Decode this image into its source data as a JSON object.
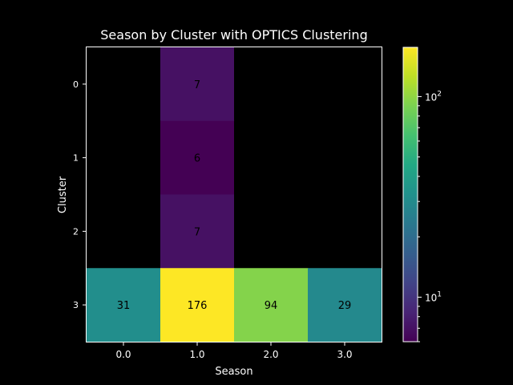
{
  "chart_data": {
    "type": "heatmap",
    "title": "Season by Cluster with OPTICS Clustering",
    "xlabel": "Season",
    "ylabel": "Cluster",
    "x_categories": [
      "0.0",
      "1.0",
      "2.0",
      "3.0"
    ],
    "y_categories": [
      "0",
      "1",
      "2",
      "3"
    ],
    "values": [
      [
        null,
        7,
        null,
        null
      ],
      [
        null,
        6,
        null,
        null
      ],
      [
        null,
        7,
        null,
        null
      ],
      [
        31,
        176,
        94,
        29
      ]
    ],
    "cell_labels": [
      [
        "",
        "7",
        "",
        ""
      ],
      [
        "",
        "6",
        "",
        ""
      ],
      [
        "",
        "7",
        "",
        ""
      ],
      [
        "31",
        "176",
        "94",
        "29"
      ]
    ],
    "colormap": "viridis",
    "color_scale": "log",
    "color_range": [
      6,
      176
    ],
    "missing_color": "#000000",
    "colorbar_ticks": [
      {
        "value": 10,
        "base": "10",
        "exponent": "1"
      },
      {
        "value": 100,
        "base": "10",
        "exponent": "2"
      }
    ]
  },
  "colors": {
    "background": "#000000",
    "text": "#ffffff",
    "cell_text": "#000000"
  }
}
